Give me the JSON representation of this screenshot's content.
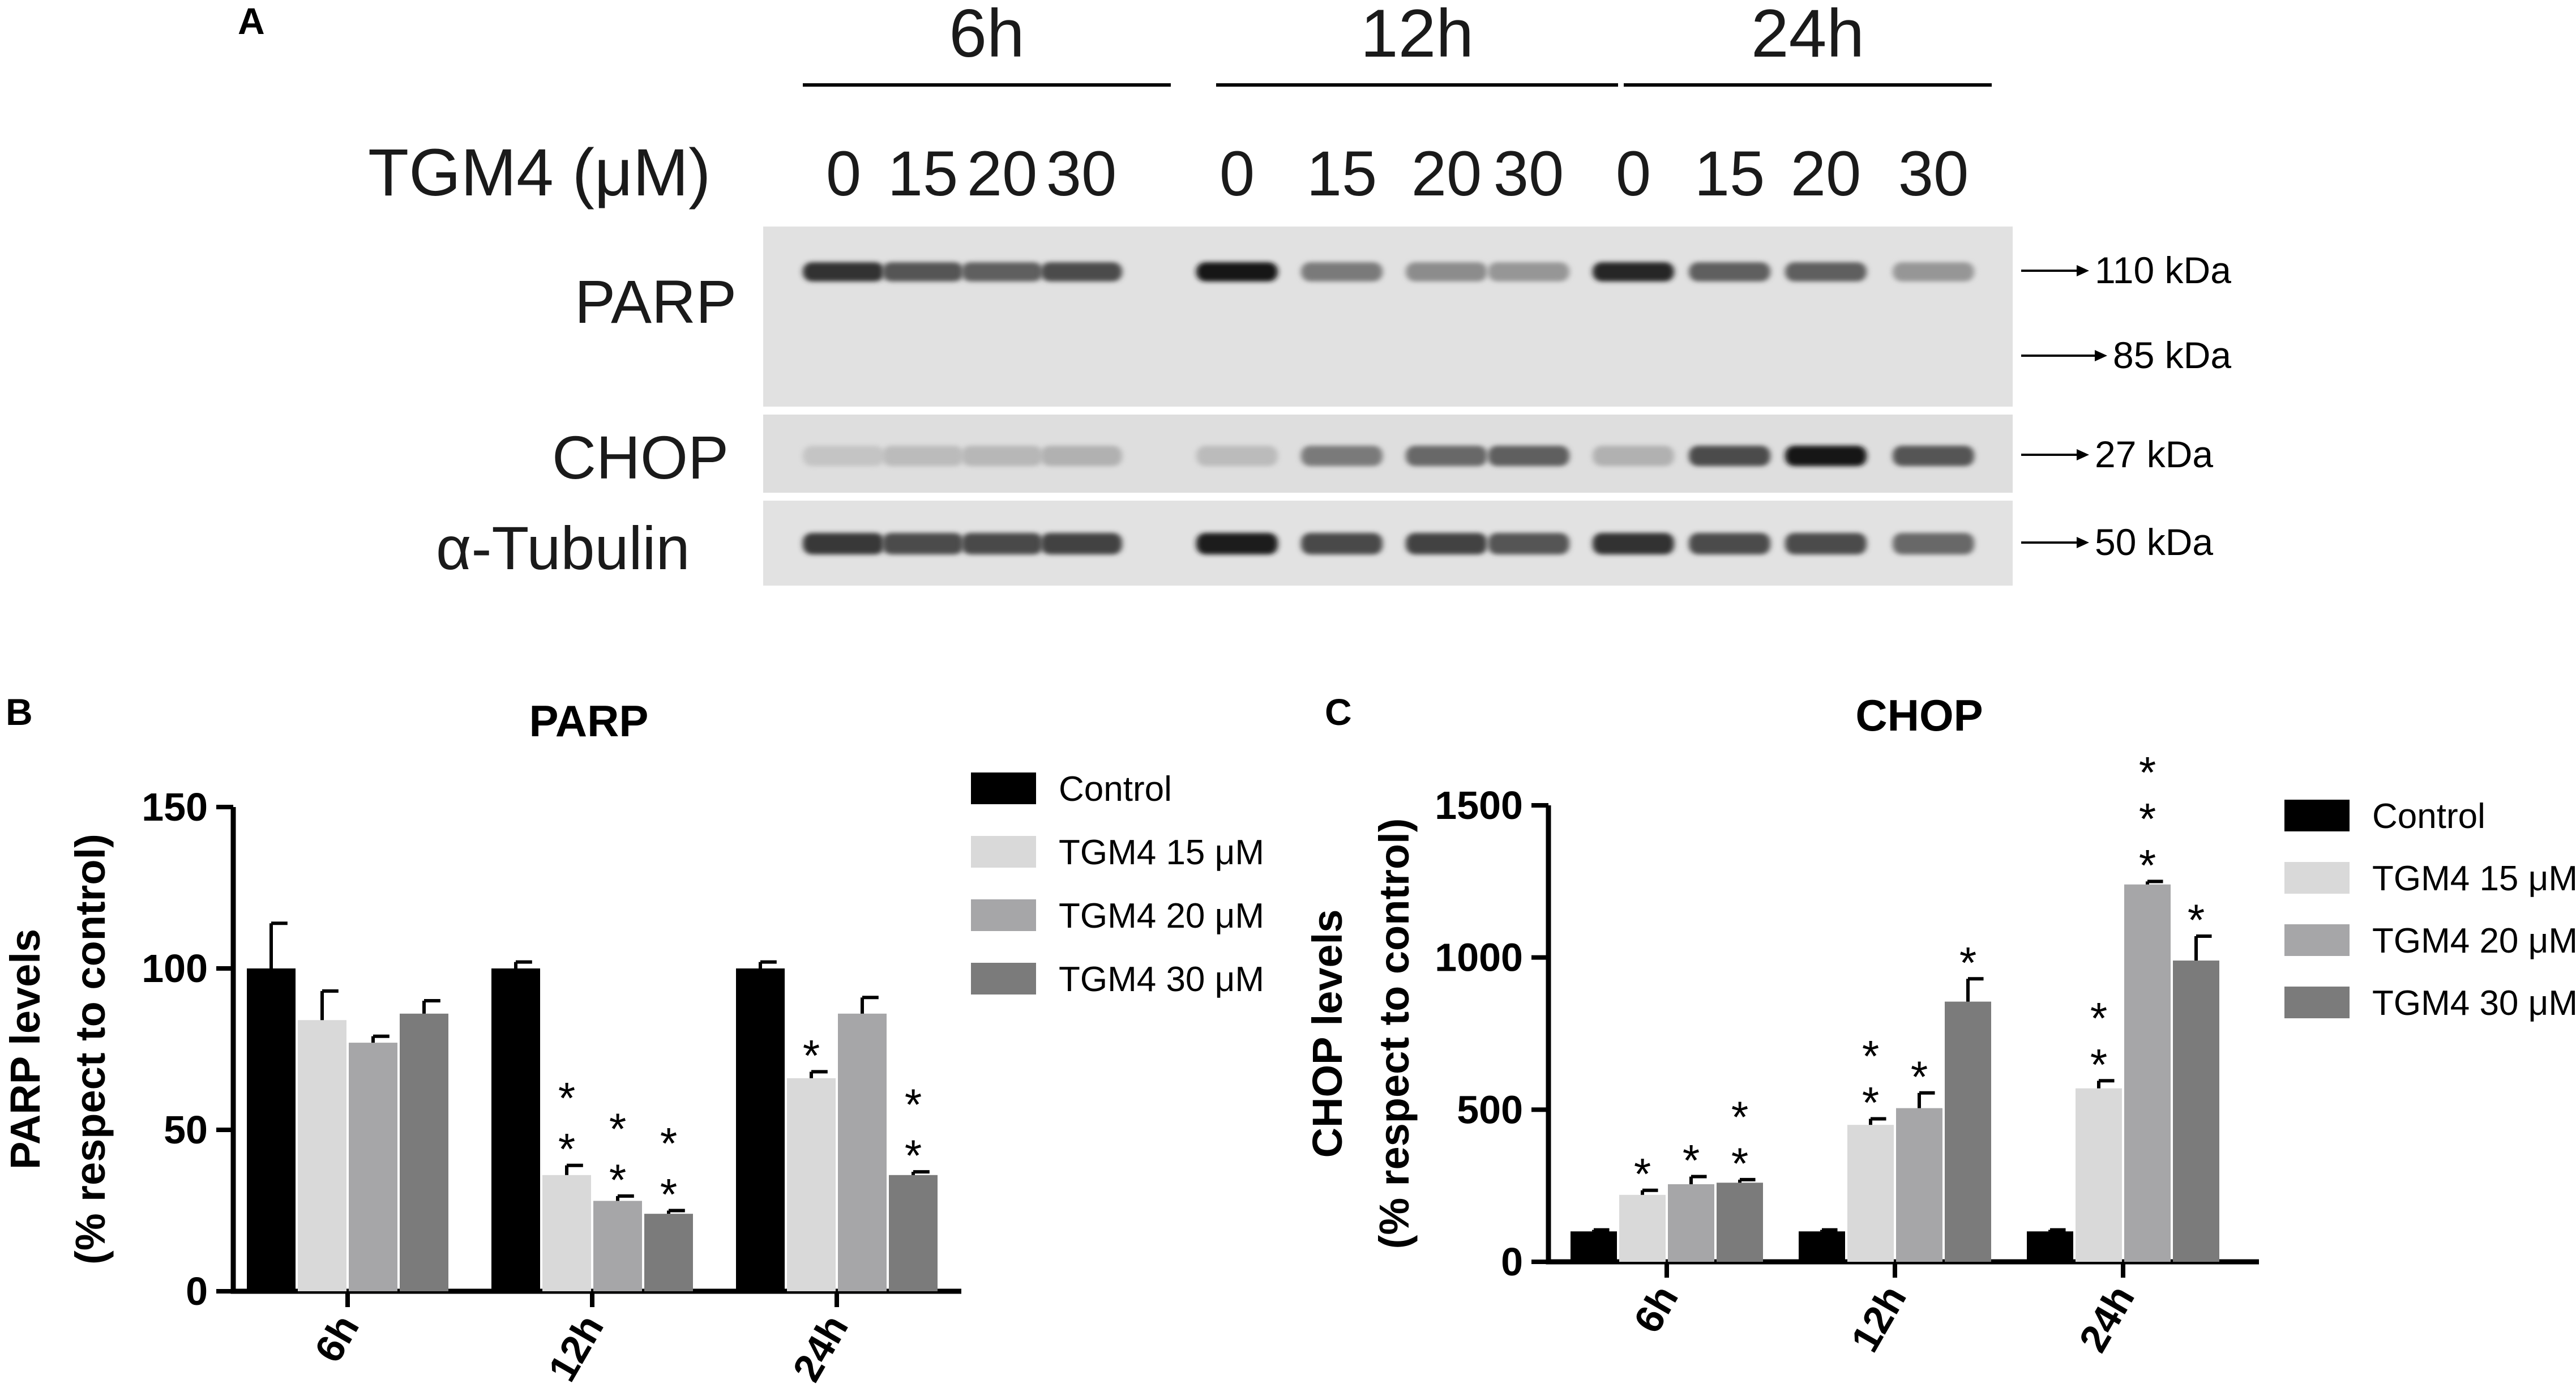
{
  "panel_a": {
    "label": "A",
    "time_labels": [
      "6h",
      "12h",
      "24h"
    ],
    "treatment_label": "TGM4 (μM)",
    "doses": [
      "0",
      "15",
      "20",
      "30",
      "0",
      "15",
      "20",
      "30",
      "0",
      "15",
      "20",
      "30"
    ],
    "rows": [
      {
        "name": "PARP",
        "markers": [
          "110 kDa",
          "85 kDa"
        ],
        "band_intensity": [
          0.85,
          0.65,
          0.6,
          0.7,
          1.0,
          0.45,
          0.35,
          0.3,
          0.9,
          0.6,
          0.6,
          0.3
        ]
      },
      {
        "name": "CHOP",
        "markers": [
          "27 kDa"
        ],
        "band_intensity": [
          0.05,
          0.1,
          0.12,
          0.15,
          0.1,
          0.45,
          0.55,
          0.6,
          0.15,
          0.7,
          1.0,
          0.65
        ]
      },
      {
        "name": "α-Tubulin",
        "markers": [
          "50 kDa"
        ],
        "band_intensity": [
          0.8,
          0.7,
          0.72,
          0.75,
          0.95,
          0.72,
          0.75,
          0.65,
          0.85,
          0.7,
          0.7,
          0.55
        ]
      }
    ]
  },
  "panel_b": {
    "label": "B"
  },
  "panel_c": {
    "label": "C"
  },
  "chart_data": [
    {
      "type": "bar",
      "title": "PARP",
      "ylabel_line1": "PARP levels",
      "ylabel_line2": "(% respect to control)",
      "categories": [
        "6h",
        "12h",
        "24h"
      ],
      "ylim": [
        0,
        150
      ],
      "yticks": [
        0,
        50,
        100,
        150
      ],
      "legend_position": "right",
      "series": [
        {
          "name": "Control",
          "color": "#000000",
          "values": [
            100,
            100,
            100
          ],
          "errors": [
            14,
            2,
            2
          ],
          "stars": [
            0,
            0,
            0
          ]
        },
        {
          "name": "TGM4 15 μM",
          "color": "#d9d9d9",
          "values": [
            84,
            36,
            66
          ],
          "errors": [
            9,
            3,
            2
          ],
          "stars": [
            0,
            2,
            1
          ]
        },
        {
          "name": "TGM4 20 μM",
          "color": "#a6a6a8",
          "values": [
            77,
            28,
            86
          ],
          "errors": [
            2,
            1.5,
            5
          ],
          "stars": [
            0,
            2,
            0
          ]
        },
        {
          "name": "TGM4 30 μM",
          "color": "#7b7b7b",
          "values": [
            86,
            24,
            36
          ],
          "errors": [
            4,
            1,
            1
          ],
          "stars": [
            0,
            2,
            2
          ]
        }
      ]
    },
    {
      "type": "bar",
      "title": "CHOP",
      "ylabel_line1": "CHOP levels",
      "ylabel_line2": "(% respect to control)",
      "categories": [
        "6h",
        "12h",
        "24h"
      ],
      "ylim": [
        0,
        1500
      ],
      "yticks": [
        0,
        500,
        1000,
        1500
      ],
      "legend_position": "right",
      "series": [
        {
          "name": "Control",
          "color": "#000000",
          "values": [
            100,
            100,
            100
          ],
          "errors": [
            5,
            5,
            5
          ],
          "stars": [
            0,
            0,
            0
          ]
        },
        {
          "name": "TGM4 15 μM",
          "color": "#d9d9d9",
          "values": [
            220,
            450,
            570
          ],
          "errors": [
            15,
            20,
            25
          ],
          "stars": [
            1,
            2,
            2
          ]
        },
        {
          "name": "TGM4 20 μM",
          "color": "#a6a6a8",
          "values": [
            255,
            505,
            1240
          ],
          "errors": [
            25,
            50,
            10
          ],
          "stars": [
            1,
            1,
            3
          ]
        },
        {
          "name": "TGM4 30 μM",
          "color": "#7b7b7b",
          "values": [
            260,
            855,
            990
          ],
          "errors": [
            10,
            75,
            80
          ],
          "stars": [
            2,
            1,
            1
          ]
        }
      ]
    }
  ]
}
